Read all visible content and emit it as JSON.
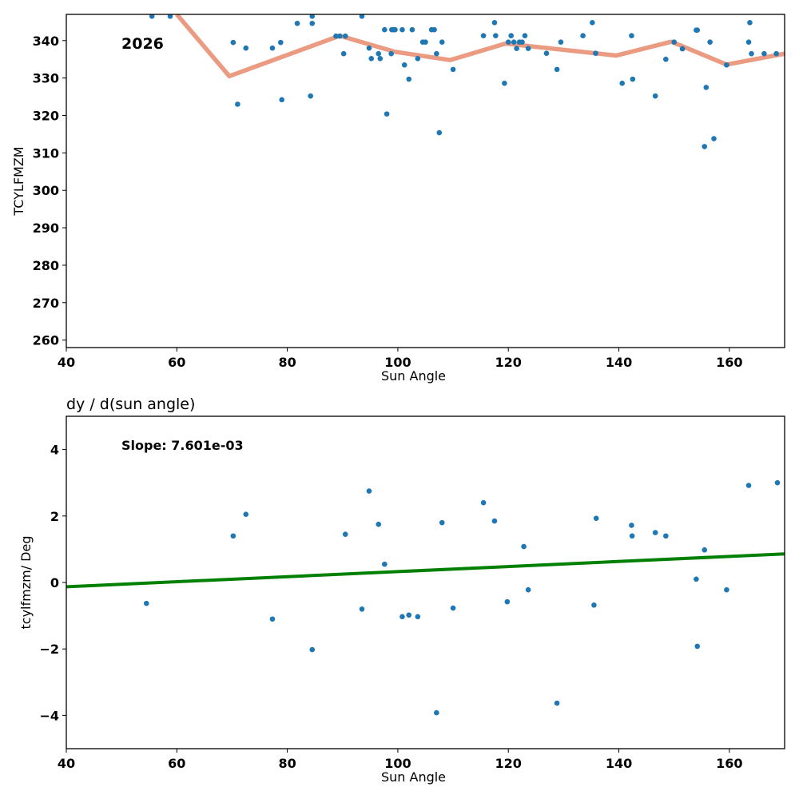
{
  "chart_data": [
    {
      "type": "scatter",
      "panel": "top",
      "title": "",
      "xlabel": "Sun Angle",
      "ylabel": "TCYLFMZM",
      "xlim": [
        40,
        170
      ],
      "ylim": [
        258,
        347
      ],
      "xticks": [
        40,
        60,
        80,
        100,
        120,
        140,
        160
      ],
      "yticks": [
        260,
        270,
        280,
        290,
        300,
        310,
        320,
        330,
        340
      ],
      "annotation": "2026",
      "grid": false,
      "points_color": "#1f77b4",
      "line_color": "#e9967a",
      "points": [
        [
          55.5,
          346.5
        ],
        [
          58.8,
          346.5
        ],
        [
          70.2,
          339.5
        ],
        [
          71.0,
          323.0
        ],
        [
          72.5,
          338.0
        ],
        [
          77.3,
          338.0
        ],
        [
          78.8,
          339.5
        ],
        [
          79.0,
          324.2
        ],
        [
          81.8,
          344.6
        ],
        [
          84.2,
          325.2
        ],
        [
          84.5,
          344.6
        ],
        [
          84.5,
          346.5
        ],
        [
          88.8,
          341.2
        ],
        [
          89.5,
          341.2
        ],
        [
          90.2,
          336.5
        ],
        [
          90.5,
          341.2
        ],
        [
          93.5,
          346.5
        ],
        [
          94.8,
          338.0
        ],
        [
          95.2,
          335.2
        ],
        [
          96.5,
          336.5
        ],
        [
          96.8,
          335.2
        ],
        [
          97.6,
          342.9
        ],
        [
          98.0,
          320.4
        ],
        [
          98.8,
          336.5
        ],
        [
          98.9,
          342.9
        ],
        [
          99.2,
          342.9
        ],
        [
          99.5,
          342.9
        ],
        [
          100.8,
          342.9
        ],
        [
          101.2,
          333.5
        ],
        [
          102.0,
          329.7
        ],
        [
          102.6,
          342.9
        ],
        [
          103.6,
          335.2
        ],
        [
          104.5,
          339.6
        ],
        [
          105.0,
          339.6
        ],
        [
          106.1,
          342.9
        ],
        [
          106.6,
          342.9
        ],
        [
          107.0,
          336.5
        ],
        [
          107.5,
          315.4
        ],
        [
          108.0,
          339.6
        ],
        [
          110.0,
          332.3
        ],
        [
          115.5,
          341.3
        ],
        [
          117.5,
          344.8
        ],
        [
          117.7,
          341.3
        ],
        [
          119.3,
          328.6
        ],
        [
          120.0,
          339.6
        ],
        [
          120.5,
          341.3
        ],
        [
          121.0,
          339.6
        ],
        [
          121.5,
          337.9
        ],
        [
          122.0,
          339.6
        ],
        [
          122.5,
          339.6
        ],
        [
          123.0,
          341.3
        ],
        [
          123.6,
          337.9
        ],
        [
          126.9,
          336.6
        ],
        [
          128.8,
          332.3
        ],
        [
          129.5,
          339.6
        ],
        [
          133.5,
          341.3
        ],
        [
          135.2,
          344.8
        ],
        [
          135.8,
          336.6
        ],
        [
          140.6,
          328.6
        ],
        [
          142.3,
          341.3
        ],
        [
          142.5,
          329.7
        ],
        [
          146.6,
          325.2
        ],
        [
          148.5,
          335.0
        ],
        [
          150.0,
          339.6
        ],
        [
          151.5,
          337.8
        ],
        [
          154.0,
          342.8
        ],
        [
          154.2,
          342.8
        ],
        [
          155.5,
          311.7
        ],
        [
          155.8,
          327.5
        ],
        [
          156.5,
          339.6
        ],
        [
          157.2,
          313.8
        ],
        [
          159.5,
          333.5
        ],
        [
          163.5,
          339.6
        ],
        [
          163.7,
          344.8
        ],
        [
          164.0,
          336.5
        ],
        [
          166.3,
          336.5
        ],
        [
          168.5,
          336.5
        ]
      ],
      "line": {
        "x": [
          60,
          69.5,
          89.5,
          99.5,
          109.5,
          119.5,
          139.5,
          149.5,
          159.5,
          170
        ],
        "y": [
          347.0,
          330.5,
          341.3,
          337.0,
          334.8,
          339.2,
          336.0,
          339.7,
          333.6,
          336.5
        ]
      }
    },
    {
      "type": "scatter",
      "panel": "bottom",
      "title": "dy / d(sun angle)",
      "xlabel": "Sun Angle",
      "ylabel": "tcylfmzm/ Deg",
      "xlim": [
        40,
        170
      ],
      "ylim": [
        -5,
        5
      ],
      "xticks": [
        40,
        60,
        80,
        100,
        120,
        140,
        160
      ],
      "yticks": [
        -4,
        -2,
        0,
        2,
        4
      ],
      "ytick_labels": [
        "−4",
        "−2",
        "0",
        "2",
        "4"
      ],
      "annotation": "Slope: 7.601e-03",
      "grid": false,
      "points_color": "#1f77b4",
      "line_color": "#008000",
      "points": [
        [
          54.5,
          -0.63
        ],
        [
          70.2,
          1.4
        ],
        [
          72.5,
          2.05
        ],
        [
          77.3,
          -1.1
        ],
        [
          84.5,
          -2.02
        ],
        [
          90.5,
          1.45
        ],
        [
          93.5,
          -0.8
        ],
        [
          94.8,
          2.75
        ],
        [
          96.5,
          1.75
        ],
        [
          97.6,
          0.55
        ],
        [
          100.8,
          -1.03
        ],
        [
          102.0,
          -0.98
        ],
        [
          103.6,
          -1.03
        ],
        [
          107.0,
          -3.92
        ],
        [
          108.0,
          1.8
        ],
        [
          110.0,
          -0.77
        ],
        [
          115.5,
          2.4
        ],
        [
          117.5,
          1.85
        ],
        [
          119.8,
          -0.58
        ],
        [
          122.8,
          1.08
        ],
        [
          123.6,
          -0.22
        ],
        [
          128.8,
          -3.63
        ],
        [
          135.5,
          -0.68
        ],
        [
          135.9,
          1.93
        ],
        [
          142.3,
          1.72
        ],
        [
          142.4,
          1.4
        ],
        [
          146.6,
          1.5
        ],
        [
          148.5,
          1.4
        ],
        [
          154.0,
          0.1
        ],
        [
          154.2,
          -1.92
        ],
        [
          155.5,
          0.98
        ],
        [
          159.5,
          -0.22
        ],
        [
          163.5,
          2.92
        ],
        [
          168.7,
          3.0
        ]
      ],
      "fit_line": {
        "x": [
          40,
          170
        ],
        "y": [
          -0.13,
          0.86
        ]
      }
    }
  ]
}
